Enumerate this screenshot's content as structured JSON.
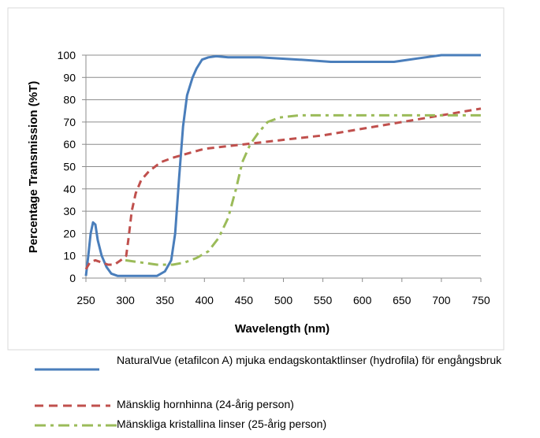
{
  "chart_data": {
    "type": "line",
    "xlabel": "Wavelength (nm)",
    "ylabel": "Percentage Transmission (%T)",
    "xlim": [
      250,
      750
    ],
    "ylim": [
      0,
      100
    ],
    "x_ticks": [
      "250",
      "300",
      "350",
      "400",
      "450",
      "500",
      "550",
      "600",
      "650",
      "700",
      "750"
    ],
    "y_ticks": [
      "0",
      "10",
      "20",
      "30",
      "40",
      "50",
      "60",
      "70",
      "80",
      "90",
      "100"
    ],
    "grid": "horizontal",
    "legend_position": "bottom",
    "series": [
      {
        "name": "NaturalVue (etafilcon A) mjuka endagskontaktlinser (hydrofila) för engångsbruk",
        "color": "#4a7ebb",
        "style": "solid",
        "points": [
          [
            250,
            1
          ],
          [
            253,
            10
          ],
          [
            256,
            20
          ],
          [
            259,
            25
          ],
          [
            262,
            24
          ],
          [
            265,
            17
          ],
          [
            270,
            10
          ],
          [
            276,
            5
          ],
          [
            282,
            2
          ],
          [
            290,
            1
          ],
          [
            300,
            1
          ],
          [
            320,
            1
          ],
          [
            340,
            1
          ],
          [
            350,
            3
          ],
          [
            358,
            8
          ],
          [
            363,
            20
          ],
          [
            368,
            45
          ],
          [
            373,
            68
          ],
          [
            378,
            82
          ],
          [
            385,
            90
          ],
          [
            390,
            94
          ],
          [
            397,
            98
          ],
          [
            405,
            99
          ],
          [
            415,
            99.5
          ],
          [
            430,
            99
          ],
          [
            470,
            99
          ],
          [
            520,
            98
          ],
          [
            560,
            97
          ],
          [
            600,
            97
          ],
          [
            640,
            97
          ],
          [
            670,
            98.5
          ],
          [
            700,
            100
          ],
          [
            750,
            100
          ]
        ]
      },
      {
        "name": "Mänsklig hornhinna (24-årig person)",
        "color": "#c0504d",
        "style": "dashed",
        "points": [
          [
            250,
            4
          ],
          [
            255,
            7
          ],
          [
            262,
            8
          ],
          [
            270,
            7
          ],
          [
            278,
            6
          ],
          [
            286,
            6
          ],
          [
            294,
            8
          ],
          [
            301,
            10
          ],
          [
            304,
            18
          ],
          [
            308,
            30
          ],
          [
            313,
            38
          ],
          [
            320,
            44
          ],
          [
            330,
            48
          ],
          [
            345,
            52
          ],
          [
            360,
            54
          ],
          [
            380,
            56
          ],
          [
            400,
            58
          ],
          [
            450,
            60
          ],
          [
            500,
            62
          ],
          [
            550,
            64
          ],
          [
            600,
            67
          ],
          [
            650,
            70
          ],
          [
            700,
            73
          ],
          [
            750,
            76
          ]
        ]
      },
      {
        "name": "Mänskliga kristallina linser (25-årig person)",
        "color": "#9bbb59",
        "style": "dashdot",
        "points": [
          [
            300,
            8
          ],
          [
            320,
            7
          ],
          [
            340,
            6
          ],
          [
            360,
            6
          ],
          [
            375,
            7
          ],
          [
            390,
            9
          ],
          [
            405,
            12
          ],
          [
            418,
            18
          ],
          [
            430,
            27
          ],
          [
            440,
            40
          ],
          [
            448,
            52
          ],
          [
            458,
            60
          ],
          [
            468,
            65
          ],
          [
            480,
            70
          ],
          [
            495,
            72
          ],
          [
            520,
            73
          ],
          [
            560,
            73
          ],
          [
            600,
            73
          ],
          [
            650,
            73
          ],
          [
            700,
            73
          ],
          [
            750,
            73
          ]
        ]
      }
    ]
  }
}
